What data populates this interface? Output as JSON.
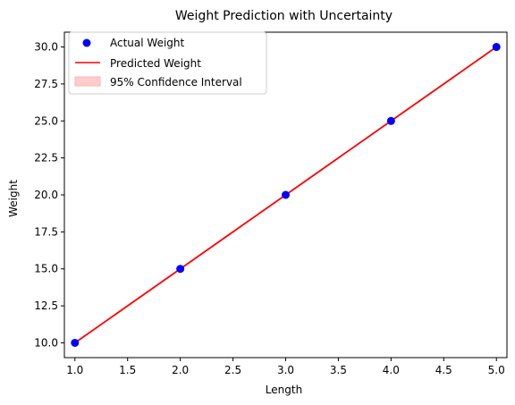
{
  "chart_data": {
    "type": "line",
    "title": "Weight Prediction with Uncertainty",
    "xlabel": "Length",
    "ylabel": "Weight",
    "xlim": [
      0.9,
      5.1
    ],
    "ylim": [
      9.0,
      31.0
    ],
    "xticks": [
      "1.0",
      "1.5",
      "2.0",
      "2.5",
      "3.0",
      "3.5",
      "4.0",
      "4.5",
      "5.0"
    ],
    "yticks": [
      "10.0",
      "12.5",
      "15.0",
      "17.5",
      "20.0",
      "22.5",
      "25.0",
      "27.5",
      "30.0"
    ],
    "grid": false,
    "legend_position": "top-left",
    "series": [
      {
        "name": "Actual Weight",
        "kind": "scatter",
        "color": "#0000ff",
        "x": [
          1.0,
          2.0,
          3.0,
          4.0,
          5.0
        ],
        "y": [
          10.0,
          15.0,
          20.0,
          25.0,
          30.0
        ]
      },
      {
        "name": "Predicted Weight",
        "kind": "line",
        "color": "#ff0000",
        "x": [
          1.0,
          2.0,
          3.0,
          4.0,
          5.0
        ],
        "y": [
          10.0,
          15.0,
          20.0,
          25.0,
          30.0
        ]
      },
      {
        "name": "95% Confidence Interval",
        "kind": "band",
        "color": "#ffcccc",
        "x": [
          1.0,
          2.0,
          3.0,
          4.0,
          5.0
        ],
        "lower": [
          10.0,
          15.0,
          20.0,
          25.0,
          30.0
        ],
        "upper": [
          10.0,
          15.0,
          20.0,
          25.0,
          30.0
        ]
      }
    ]
  }
}
